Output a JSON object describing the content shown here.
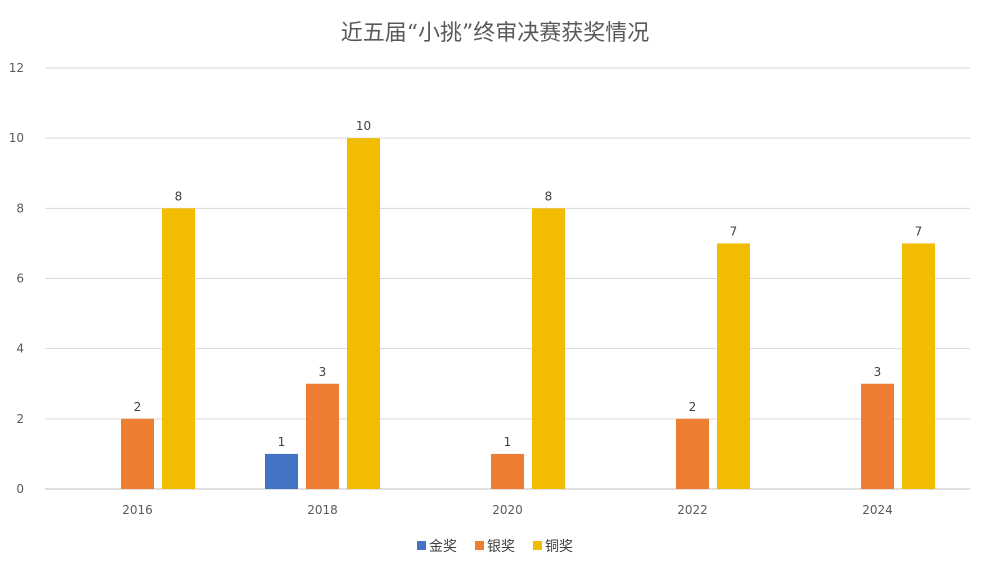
{
  "chart_data": {
    "type": "bar",
    "title": "近五届“小挑”终审决赛获奖情况",
    "xlabel": "",
    "ylabel": "",
    "categories": [
      "2016",
      "2018",
      "2020",
      "2022",
      "2024"
    ],
    "series": [
      {
        "name": "金奖",
        "color": "#4472C4",
        "values": [
          0,
          1,
          0,
          0,
          0
        ]
      },
      {
        "name": "银奖",
        "color": "#ED7D31",
        "values": [
          2,
          3,
          1,
          2,
          3
        ]
      },
      {
        "name": "铜奖",
        "color": "#F2BC00",
        "values": [
          8,
          10,
          8,
          7,
          7
        ]
      }
    ],
    "ylim": [
      0,
      12
    ],
    "yticks": [
      0,
      2,
      4,
      6,
      8,
      10,
      12
    ],
    "grid": true,
    "legend": "bottom"
  }
}
